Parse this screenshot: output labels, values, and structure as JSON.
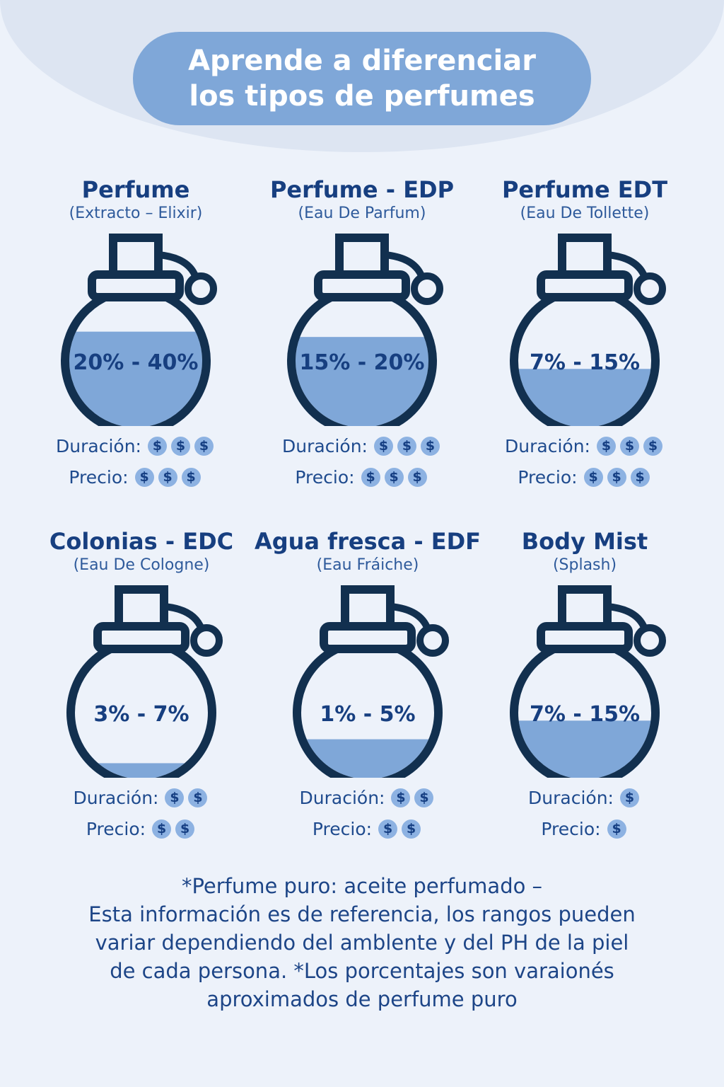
{
  "title": {
    "line1": "Aprende a diferenciar",
    "line2": "los tipos de perfumes"
  },
  "colors": {
    "fill": "#7fa7d8",
    "outline": "#12304f",
    "text": "#13418a"
  },
  "types": [
    {
      "title": "Perfume",
      "subtitle": "(Extracto – Elixir)",
      "range": "20% - 40%",
      "fill_level": 0.72,
      "duracion_label": "Duración:",
      "precio_label": "Precio:",
      "duracion_coins": 3,
      "precio_coins": 3
    },
    {
      "title": "Perfume - EDP",
      "subtitle": "(Eau De Parfum)",
      "range": "15% - 20%",
      "fill_level": 0.68,
      "duracion_label": "Duración:",
      "precio_label": "Precio:",
      "duracion_coins": 3,
      "precio_coins": 3
    },
    {
      "title": "Perfume EDT",
      "subtitle": "(Eau De Tollette)",
      "range": "7% - 15%",
      "fill_level": 0.44,
      "duracion_label": "Duración:",
      "precio_label": "Precio:",
      "duracion_coins": 3,
      "precio_coins": 3
    },
    {
      "title": "Colonias - EDC",
      "subtitle": "(Eau De Cologne)",
      "range": "3% - 7%",
      "fill_level": 0.12,
      "duracion_label": "Duración:",
      "precio_label": "Precio:",
      "duracion_coins": 2,
      "precio_coins": 2
    },
    {
      "title": "Agua fresca - EDF",
      "subtitle": "(Eau Fráiche)",
      "range": "1% - 5%",
      "fill_level": 0.3,
      "duracion_label": "Duración:",
      "precio_label": "Precio:",
      "duracion_coins": 2,
      "precio_coins": 2
    },
    {
      "title": "Body Mist",
      "subtitle": "(Splash)",
      "range": "7% - 15%",
      "fill_level": 0.44,
      "duracion_label": "Duración:",
      "precio_label": "Precio:",
      "duracion_coins": 1,
      "precio_coins": 1
    }
  ],
  "coin_symbol": "$",
  "footer": {
    "line1": "*Perfume puro: aceite perfumado –",
    "line2": "Esta información es de referencia, los rangos pueden",
    "line3": "variar dependiendo del amblente y del PH de la piel",
    "line4": "de cada persona. *Los porcentajes son varaionés",
    "line5": "aproximados de perfume puro"
  }
}
